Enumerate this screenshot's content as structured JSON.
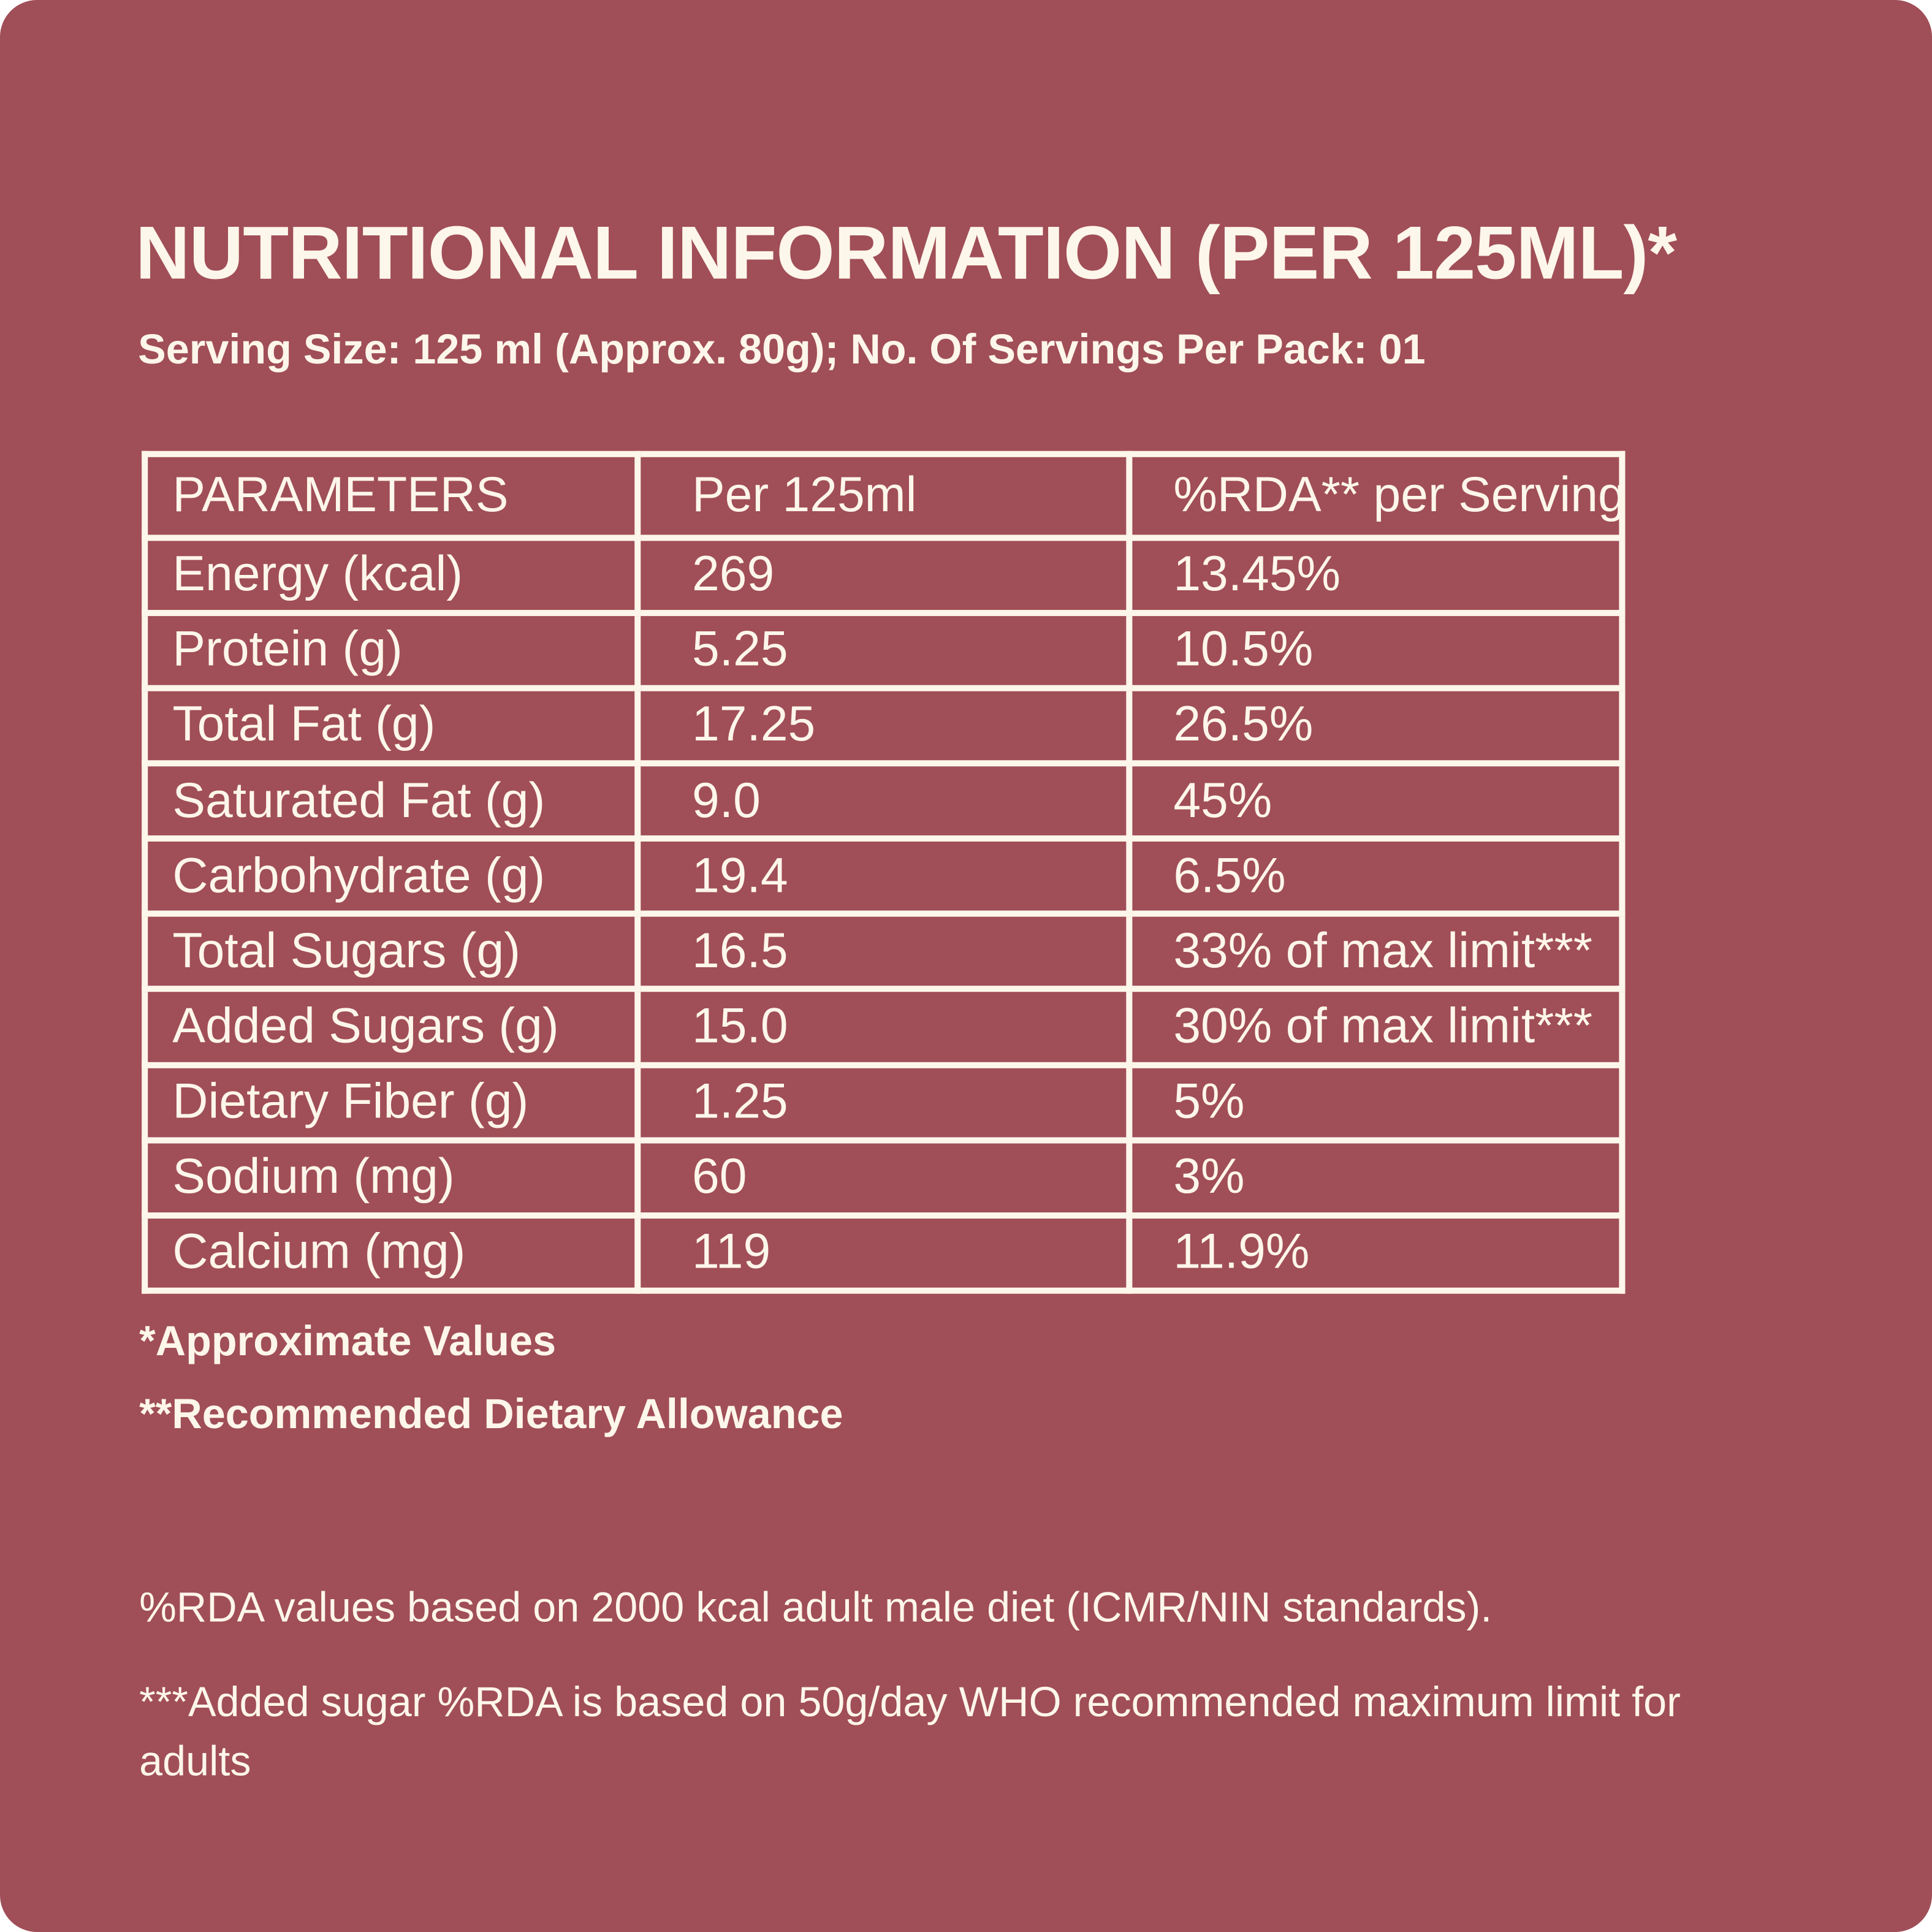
{
  "header": {
    "title": "NUTRITIONAL INFORMATION (PER 125ML)*",
    "subtitle": "Serving Size: 125 ml (Approx. 80g); No. Of Servings Per Pack: 01"
  },
  "table": {
    "columns": [
      "PARAMETERS",
      "Per 125ml",
      "%RDA** per Serving"
    ],
    "rows": [
      [
        "Energy (kcal)",
        "269",
        "13.45%"
      ],
      [
        "Protein (g)",
        "5.25",
        "10.5%"
      ],
      [
        "Total Fat (g)",
        "17.25",
        "26.5%"
      ],
      [
        "Saturated Fat (g)",
        "9.0",
        "45%"
      ],
      [
        "Carbohydrate (g)",
        "19.4",
        "6.5%"
      ],
      [
        "Total Sugars (g)",
        "16.5",
        "33% of max limit***"
      ],
      [
        "Added Sugars (g)",
        "15.0",
        "30% of max limit***"
      ],
      [
        "Dietary Fiber (g)",
        "1.25",
        "5%"
      ],
      [
        "Sodium (mg)",
        "60",
        "3%"
      ],
      [
        "Calcium (mg)",
        "119",
        "11.9%"
      ]
    ]
  },
  "footnotes": [
    "*Approximate Values",
    "**Recommended Dietary Allowance"
  ],
  "notes": [
    "%RDA values based on 2000 kcal adult male diet (ICMR/NIN standards).",
    "***Added sugar %RDA is based on 50g/day WHO recommended maximum limit for adults"
  ]
}
